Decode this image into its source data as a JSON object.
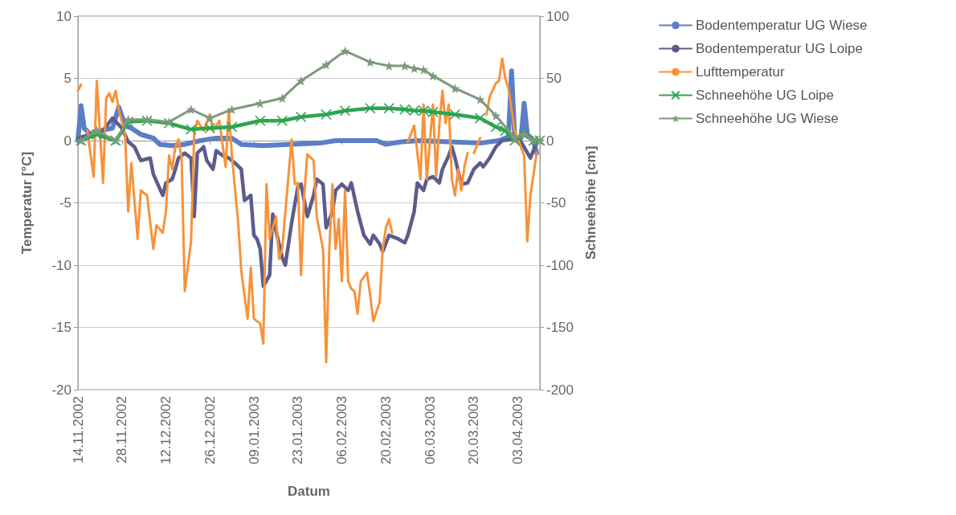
{
  "chart_data": {
    "type": "line",
    "xlabel": "Datum",
    "ylabel": "Temperatur [°C]",
    "y2label": "Schneehöhe [cm]",
    "xlim": [
      "2002-11-14",
      "2003-04-10"
    ],
    "xticks": [
      {
        "value": "2002-11-14",
        "label": "14.11.2002"
      },
      {
        "value": "2002-11-28",
        "label": "28.11.2002"
      },
      {
        "value": "2002-12-12",
        "label": "12.12.2002"
      },
      {
        "value": "2002-12-26",
        "label": "26.12.2002"
      },
      {
        "value": "2003-01-09",
        "label": "09.01.2003"
      },
      {
        "value": "2003-01-23",
        "label": "23.01.2003"
      },
      {
        "value": "2003-02-06",
        "label": "06.02.2003"
      },
      {
        "value": "2003-02-20",
        "label": "20.02.2003"
      },
      {
        "value": "2003-03-06",
        "label": "06.03.2003"
      },
      {
        "value": "2003-03-20",
        "label": "20.03.2003"
      },
      {
        "value": "2003-04-03",
        "label": "03.04.2003"
      }
    ],
    "ylim": [
      -20,
      10
    ],
    "yticks": [
      -20,
      -15,
      -10,
      -5,
      0,
      5,
      10
    ],
    "y2lim": [
      -200,
      100
    ],
    "y2ticks": [
      -200,
      -150,
      -100,
      -50,
      0,
      50,
      100
    ],
    "grid": "y",
    "legend": "right",
    "line_style": "solid",
    "series": [
      {
        "name": "Bodentemperatur UG Wiese",
        "color": "#5b7fc6",
        "marker": "none",
        "x": [
          "2002-11-14",
          "2002-11-15",
          "2002-11-16",
          "2002-11-18",
          "2002-11-21",
          "2002-11-25",
          "2002-11-27",
          "2002-11-29",
          "2002-12-01",
          "2002-12-04",
          "2002-12-08",
          "2002-12-10",
          "2002-12-14",
          "2002-12-18",
          "2002-12-23",
          "2002-12-28",
          "2003-01-02",
          "2003-01-05",
          "2003-01-12",
          "2003-01-20",
          "2003-01-30",
          "2003-02-04",
          "2003-02-17",
          "2003-02-20",
          "2003-02-25",
          "2003-03-02",
          "2003-03-12",
          "2003-03-22",
          "2003-03-28",
          "2003-03-31",
          "2003-04-01",
          "2003-04-02",
          "2003-04-04",
          "2003-04-05",
          "2003-04-06",
          "2003-04-08",
          "2003-04-09"
        ],
        "values": [
          0,
          2.8,
          1.0,
          0.5,
          0.8,
          1.0,
          2.7,
          1.2,
          1.0,
          0.5,
          0.2,
          -0.3,
          -0.4,
          -0.3,
          0,
          0.2,
          0.2,
          -0.3,
          -0.4,
          -0.3,
          -0.2,
          0,
          0,
          -0.3,
          -0.1,
          0,
          -0.1,
          -0.2,
          0,
          0.3,
          5.6,
          0.3,
          0.2,
          3.0,
          0.5,
          0,
          -1.0
        ]
      },
      {
        "name": "Bodentemperatur UG Loipe",
        "color": "#5c5c8c",
        "marker": "none",
        "x": [
          "2002-11-14",
          "2002-11-18",
          "2002-11-22",
          "2002-11-25",
          "2002-11-28",
          "2002-11-30",
          "2002-12-02",
          "2002-12-04",
          "2002-12-07",
          "2002-12-08",
          "2002-12-11",
          "2002-12-12",
          "2002-12-14",
          "2002-12-15",
          "2002-12-16",
          "2002-12-18",
          "2002-12-20",
          "2002-12-21",
          "2002-12-22",
          "2002-12-24",
          "2002-12-25",
          "2002-12-27",
          "2002-12-28",
          "2002-12-30",
          "2003-01-01",
          "2003-01-03",
          "2003-01-05",
          "2003-01-06",
          "2003-01-08",
          "2003-01-09",
          "2003-01-10",
          "2003-01-11",
          "2003-01-12",
          "2003-01-14",
          "2003-01-15",
          "2003-01-16",
          "2003-01-18",
          "2003-01-19",
          "2003-01-21",
          "2003-01-23",
          "2003-01-24",
          "2003-01-26",
          "2003-01-28",
          "2003-01-29",
          "2003-01-31",
          "2003-02-01",
          "2003-02-03",
          "2003-02-04",
          "2003-02-06",
          "2003-02-08",
          "2003-02-09",
          "2003-02-11",
          "2003-02-13",
          "2003-02-15",
          "2003-02-16",
          "2003-02-18",
          "2003-02-19",
          "2003-02-21",
          "2003-02-24",
          "2003-02-26",
          "2003-02-27",
          "2003-03-01",
          "2003-03-02",
          "2003-03-04",
          "2003-03-05",
          "2003-03-07",
          "2003-03-09",
          "2003-03-10",
          "2003-03-12",
          "2003-03-13",
          "2003-03-14",
          "2003-03-16",
          "2003-03-18",
          "2003-03-20",
          "2003-03-22",
          "2003-03-23",
          "2003-03-25",
          "2003-03-27",
          "2003-03-29",
          "2003-04-01",
          "2003-04-04",
          "2003-04-07",
          "2003-04-09"
        ],
        "values": [
          0.2,
          0.5,
          0.8,
          1.8,
          1.0,
          -0.1,
          -0.5,
          -1.6,
          -1.4,
          -2.7,
          -4.4,
          -3.4,
          -3.1,
          -2.3,
          -1.4,
          -1.0,
          -1.4,
          -6.1,
          -1.0,
          -0.5,
          -1.6,
          -2.3,
          -0.8,
          -1.2,
          -1.4,
          -1.8,
          -2.3,
          -4.8,
          -4.4,
          -7.6,
          -7.9,
          -8.7,
          -11.7,
          -10.8,
          -5.9,
          -7.2,
          -9.4,
          -10,
          -6.6,
          -3.7,
          -3.5,
          -6.1,
          -4.4,
          -3.1,
          -3.5,
          -7.0,
          -5.7,
          -4.0,
          -3.5,
          -4.0,
          -3.4,
          -5.7,
          -7.6,
          -8.3,
          -7.6,
          -8.3,
          -8.9,
          -7.6,
          -7.9,
          -8.2,
          -7.6,
          -5.7,
          -3.4,
          -4.0,
          -3.1,
          -2.9,
          -3.4,
          -2.3,
          -1.2,
          -0.5,
          -1.4,
          -3.5,
          -3.4,
          -2.3,
          -1.8,
          -2.1,
          -1.4,
          -0.5,
          0,
          0.1,
          -0.1,
          -1.4,
          -0.1
        ]
      },
      {
        "name": "Lufttemperatur",
        "color": "#f7923a",
        "marker": "none",
        "x": [
          "2002-11-14",
          "2002-11-15",
          "2002-11-16",
          "2002-11-17",
          "2002-11-19",
          "2002-11-20",
          "2002-11-22",
          "2002-11-23",
          "2002-11-24",
          "2002-11-25",
          "2002-11-26",
          "2002-11-27",
          "2002-11-29",
          "2002-11-30",
          "2002-12-01",
          "2002-12-03",
          "2002-12-04",
          "2002-12-06",
          "2002-12-08",
          "2002-12-09",
          "2002-12-11",
          "2002-12-12",
          "2002-12-13",
          "2002-12-14",
          "2002-12-15",
          "2002-12-16",
          "2002-12-17",
          "2002-12-18",
          "2002-12-20",
          "2002-12-21",
          "2002-12-22",
          "2002-12-24",
          "2002-12-26",
          "2002-12-27",
          "2002-12-29",
          "2002-12-31",
          "2003-01-01",
          "2003-01-02",
          "2003-01-04",
          "2003-01-05",
          "2003-01-07",
          "2003-01-08",
          "2003-01-09",
          "2003-01-11",
          "2003-01-12",
          "2003-01-13",
          "2003-01-14",
          "2003-01-16",
          "2003-01-17",
          "2003-01-18",
          "2003-01-21",
          "2003-01-22",
          "2003-01-23",
          "2003-01-24",
          "2003-01-25",
          "2003-01-26",
          "2003-01-28",
          "2003-01-29",
          "2003-01-31",
          "2003-02-01",
          "2003-02-02",
          "2003-02-03",
          "2003-02-04",
          "2003-02-05",
          "2003-02-06",
          "2003-02-07",
          "2003-02-08",
          "2003-02-09",
          "2003-02-10",
          "2003-02-11",
          "2003-02-12",
          "2003-02-14",
          "2003-02-15",
          "2003-02-16",
          "2003-02-18",
          "2003-02-19",
          "2003-02-20",
          "2003-02-21",
          "2003-02-22",
          "2003-02-24",
          "2003-02-27",
          "2003-03-01",
          "2003-03-03",
          "2003-03-04",
          "2003-03-05",
          "2003-03-07",
          "2003-03-08",
          "2003-03-09",
          "2003-03-10",
          "2003-03-11",
          "2003-03-12",
          "2003-03-13",
          "2003-03-14",
          "2003-03-15",
          "2003-03-16",
          "2003-03-17",
          "2003-03-18",
          "2003-03-19",
          "2003-03-20",
          "2003-03-22",
          "2003-03-23",
          "2003-03-24",
          "2003-03-25",
          "2003-03-27",
          "2003-03-28",
          "2003-03-29",
          "2003-03-30",
          "2003-03-31",
          "2003-04-02",
          "2003-04-05",
          "2003-04-06",
          "2003-04-07",
          "2003-04-09"
        ],
        "values": [
          4.0,
          4.5,
          null,
          0.8,
          -2.9,
          4.8,
          -3.4,
          3.4,
          3.8,
          3.1,
          4.0,
          2.5,
          0.5,
          -5.7,
          -1.8,
          -7.9,
          -4.0,
          -4.4,
          -8.7,
          -6.8,
          -7.4,
          -5.7,
          -1.2,
          -2.3,
          -0.5,
          0.1,
          -1.4,
          -12.1,
          -8.1,
          0.5,
          1.6,
          0.8,
          2.1,
          0.8,
          1.6,
          -2.1,
          2.5,
          -1.2,
          -6.6,
          -10.5,
          -14.3,
          -10.2,
          -14.3,
          -14.7,
          -16.3,
          -3.5,
          -7.9,
          -6.1,
          -9.5,
          -8.7,
          0.1,
          -3.5,
          -3.4,
          -10.8,
          -4.4,
          -1.1,
          -1.6,
          -6.1,
          -8.7,
          -17.8,
          -8.7,
          -3.5,
          -8.7,
          -6.3,
          -11.3,
          -4.0,
          -11.3,
          -11.9,
          -12.1,
          -13.9,
          -11.3,
          -10.6,
          -12.4,
          -14.5,
          -13.0,
          -8.7,
          -7.0,
          -6.3,
          -7.4,
          null,
          -0.1,
          1.2,
          -3.1,
          2.9,
          -3.1,
          2.9,
          -2.9,
          1.2,
          4.0,
          1.4,
          2.9,
          -3.1,
          -4.4,
          -2.3,
          -4.0,
          -2.1,
          -1.0,
          null,
          -1.0,
          0.2,
          null,
          2.1,
          3.5,
          4.6,
          4.8,
          6.6,
          5.0,
          4.2,
          0.8,
          -1.2,
          -8.1,
          -4.4,
          -1.0
        ]
      },
      {
        "name": "Schneehöhe UG Loipe",
        "color": "#2ea44f",
        "marker": "cross",
        "axis": "y2",
        "x": [
          "2002-11-15",
          "2002-11-20",
          "2002-11-26",
          "2002-11-30",
          "2002-12-06",
          "2002-12-13",
          "2002-12-20",
          "2002-12-26",
          "2003-01-02",
          "2003-01-11",
          "2003-01-18",
          "2003-01-24",
          "2003-02-01",
          "2003-02-07",
          "2003-02-15",
          "2003-02-21",
          "2003-02-26",
          "2003-03-01",
          "2003-03-04",
          "2003-03-07",
          "2003-03-14",
          "2003-03-22",
          "2003-03-27",
          "2003-03-30",
          "2003-04-02",
          "2003-04-05",
          "2003-04-08",
          "2003-04-10"
        ],
        "values": [
          0,
          5,
          0,
          15,
          16,
          14,
          9,
          10,
          11,
          16,
          16,
          19,
          21,
          24,
          26,
          26,
          25,
          24,
          24,
          23,
          21,
          18,
          11,
          8,
          0,
          5,
          0,
          0
        ]
      },
      {
        "name": "Schneehöhe UG Wiese",
        "color": "#7d9a7d",
        "marker": "star",
        "axis": "y2",
        "x": [
          "2002-11-15",
          "2002-11-20",
          "2002-11-26",
          "2002-11-30",
          "2002-12-06",
          "2002-12-13",
          "2002-12-20",
          "2002-12-26",
          "2003-01-02",
          "2003-01-11",
          "2003-01-18",
          "2003-01-24",
          "2003-02-01",
          "2003-02-07",
          "2003-02-15",
          "2003-02-21",
          "2003-02-26",
          "2003-03-01",
          "2003-03-04",
          "2003-03-07",
          "2003-03-14",
          "2003-03-22",
          "2003-03-27",
          "2003-04-02",
          "2003-04-05",
          "2003-04-08",
          "2003-04-10"
        ],
        "values": [
          0,
          8,
          0,
          17,
          17,
          15,
          25,
          18,
          25,
          30,
          34,
          48,
          61,
          72,
          63,
          60,
          60,
          58,
          57,
          52,
          42,
          33,
          20,
          2,
          5,
          0,
          0
        ]
      }
    ]
  }
}
